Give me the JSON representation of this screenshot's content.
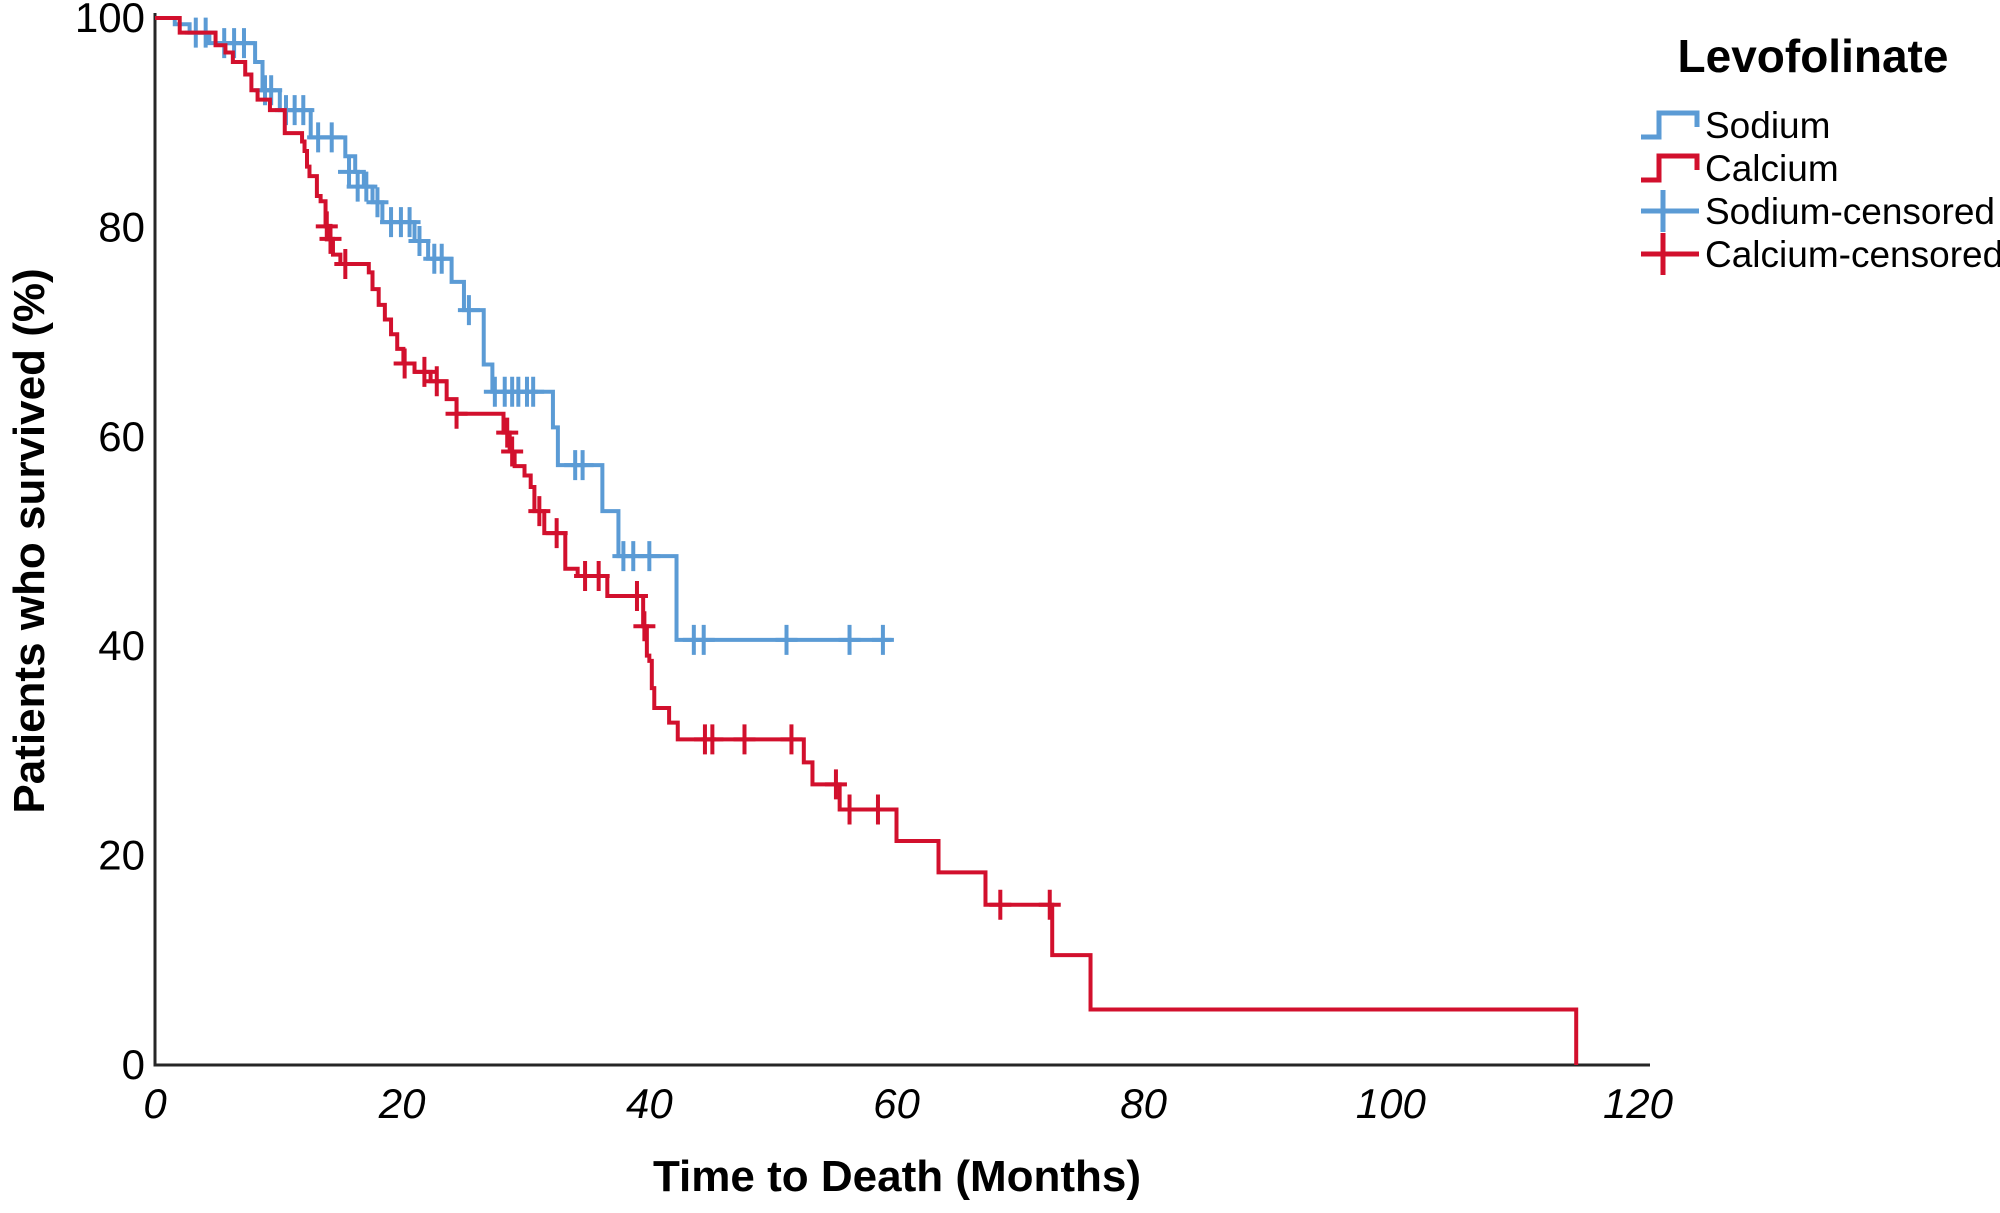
{
  "chart_data": {
    "type": "line",
    "subtype": "kaplan-meier-step",
    "title": "",
    "xlabel": "Time to Death (Months)",
    "ylabel": "Patients who survived (%)",
    "xlim": [
      0,
      120
    ],
    "ylim": [
      0,
      100
    ],
    "x_ticks": [
      0,
      20,
      40,
      60,
      80,
      100,
      120
    ],
    "y_ticks": [
      0,
      20,
      40,
      60,
      80,
      100
    ],
    "grid": false,
    "legend": {
      "title": "Levofolinate",
      "position": "top-right",
      "entries": [
        {
          "label": "Sodium",
          "type": "step-line",
          "color": "#5B9BD5"
        },
        {
          "label": "Calcium",
          "type": "step-line",
          "color": "#D2102D"
        },
        {
          "label": "Sodium-censored",
          "type": "censor-plus",
          "color": "#5B9BD5"
        },
        {
          "label": "Calcium-censored",
          "type": "censor-plus",
          "color": "#D2102D"
        }
      ]
    },
    "series": [
      {
        "name": "Sodium",
        "color": "#5B9BD5",
        "end_time": 59.6,
        "steps": [
          [
            0,
            100
          ],
          [
            1.6,
            99.4
          ],
          [
            2.8,
            98.6
          ],
          [
            4.4,
            97.6
          ],
          [
            8.1,
            95.8
          ],
          [
            8.7,
            93.1
          ],
          [
            10.1,
            91.2
          ],
          [
            12.6,
            88.6
          ],
          [
            15.4,
            86.8
          ],
          [
            16.2,
            85.3
          ],
          [
            16.9,
            83.9
          ],
          [
            17.6,
            82.4
          ],
          [
            18.4,
            80.5
          ],
          [
            21.0,
            78.7
          ],
          [
            22.1,
            77.0
          ],
          [
            24.0,
            74.8
          ],
          [
            25.0,
            72.1
          ],
          [
            26.6,
            66.9
          ],
          [
            27.3,
            64.3
          ],
          [
            32.2,
            60.9
          ],
          [
            32.6,
            57.3
          ],
          [
            36.2,
            52.9
          ],
          [
            37.5,
            48.6
          ],
          [
            42.2,
            40.6
          ]
        ],
        "censored": [
          [
            3.3,
            98.6
          ],
          [
            4.1,
            98.6
          ],
          [
            5.6,
            97.6
          ],
          [
            6.4,
            97.6
          ],
          [
            7.2,
            97.6
          ],
          [
            8.9,
            93.1
          ],
          [
            9.4,
            93.1
          ],
          [
            10.6,
            91.2
          ],
          [
            11.3,
            91.2
          ],
          [
            12.0,
            91.2
          ],
          [
            13.2,
            88.6
          ],
          [
            14.3,
            88.6
          ],
          [
            15.7,
            85.3
          ],
          [
            16.4,
            83.9
          ],
          [
            17.1,
            83.9
          ],
          [
            18.0,
            82.4
          ],
          [
            19.1,
            80.5
          ],
          [
            19.9,
            80.5
          ],
          [
            20.6,
            80.5
          ],
          [
            21.4,
            78.7
          ],
          [
            22.6,
            77.0
          ],
          [
            23.2,
            77.0
          ],
          [
            25.4,
            72.1
          ],
          [
            27.5,
            64.3
          ],
          [
            28.3,
            64.3
          ],
          [
            28.9,
            64.3
          ],
          [
            29.4,
            64.3
          ],
          [
            30.1,
            64.3
          ],
          [
            30.6,
            64.3
          ],
          [
            34.0,
            57.3
          ],
          [
            34.6,
            57.3
          ],
          [
            37.9,
            48.6
          ],
          [
            38.7,
            48.6
          ],
          [
            40.0,
            48.6
          ],
          [
            43.6,
            40.6
          ],
          [
            44.4,
            40.6
          ],
          [
            51.1,
            40.6
          ],
          [
            56.2,
            40.6
          ],
          [
            58.9,
            40.6
          ]
        ]
      },
      {
        "name": "Calcium",
        "color": "#D2102D",
        "end_time": 115,
        "steps": [
          [
            0,
            100
          ],
          [
            2.0,
            98.6
          ],
          [
            4.9,
            97.4
          ],
          [
            5.7,
            96.7
          ],
          [
            6.3,
            95.8
          ],
          [
            7.3,
            94.6
          ],
          [
            7.8,
            93.1
          ],
          [
            8.3,
            92.2
          ],
          [
            9.3,
            91.2
          ],
          [
            10.5,
            89.0
          ],
          [
            11.9,
            88.2
          ],
          [
            12.1,
            87.3
          ],
          [
            12.3,
            85.8
          ],
          [
            12.5,
            84.9
          ],
          [
            13.1,
            83.0
          ],
          [
            13.4,
            82.5
          ],
          [
            13.8,
            80.1
          ],
          [
            14.0,
            78.9
          ],
          [
            14.4,
            77.4
          ],
          [
            15.0,
            76.5
          ],
          [
            17.3,
            75.7
          ],
          [
            17.6,
            74.1
          ],
          [
            18.1,
            72.6
          ],
          [
            18.6,
            71.2
          ],
          [
            19.1,
            69.8
          ],
          [
            19.6,
            68.4
          ],
          [
            20.1,
            67.0
          ],
          [
            21.0,
            66.2
          ],
          [
            22.3,
            65.3
          ],
          [
            23.6,
            63.6
          ],
          [
            24.4,
            62.2
          ],
          [
            28.2,
            60.4
          ],
          [
            28.7,
            58.6
          ],
          [
            29.1,
            57.2
          ],
          [
            29.9,
            56.3
          ],
          [
            30.4,
            55.2
          ],
          [
            30.7,
            52.9
          ],
          [
            31.5,
            50.8
          ],
          [
            33.2,
            47.4
          ],
          [
            34.2,
            46.7
          ],
          [
            36.6,
            44.8
          ],
          [
            39.5,
            41.9
          ],
          [
            39.8,
            39.1
          ],
          [
            40.0,
            38.6
          ],
          [
            40.2,
            36.0
          ],
          [
            40.4,
            34.1
          ],
          [
            41.6,
            32.7
          ],
          [
            42.3,
            31.1
          ],
          [
            52.5,
            28.9
          ],
          [
            53.2,
            26.8
          ],
          [
            55.4,
            24.4
          ],
          [
            60.0,
            21.4
          ],
          [
            63.4,
            18.4
          ],
          [
            67.2,
            15.3
          ],
          [
            72.6,
            10.5
          ],
          [
            75.7,
            5.3
          ],
          [
            115,
            0
          ]
        ],
        "censored": [
          [
            13.9,
            80.1
          ],
          [
            14.2,
            78.9
          ],
          [
            15.4,
            76.5
          ],
          [
            20.2,
            67.0
          ],
          [
            21.8,
            66.2
          ],
          [
            22.8,
            65.3
          ],
          [
            24.4,
            62.2
          ],
          [
            28.5,
            60.4
          ],
          [
            28.9,
            58.6
          ],
          [
            31.1,
            52.9
          ],
          [
            32.5,
            50.8
          ],
          [
            34.8,
            46.7
          ],
          [
            35.9,
            46.7
          ],
          [
            39.0,
            44.8
          ],
          [
            39.6,
            41.9
          ],
          [
            44.5,
            31.1
          ],
          [
            45.1,
            31.1
          ],
          [
            47.7,
            31.1
          ],
          [
            51.5,
            31.1
          ],
          [
            55.1,
            26.8
          ],
          [
            56.2,
            24.4
          ],
          [
            58.5,
            24.4
          ],
          [
            68.4,
            15.3
          ],
          [
            72.4,
            15.3
          ]
        ]
      }
    ]
  }
}
